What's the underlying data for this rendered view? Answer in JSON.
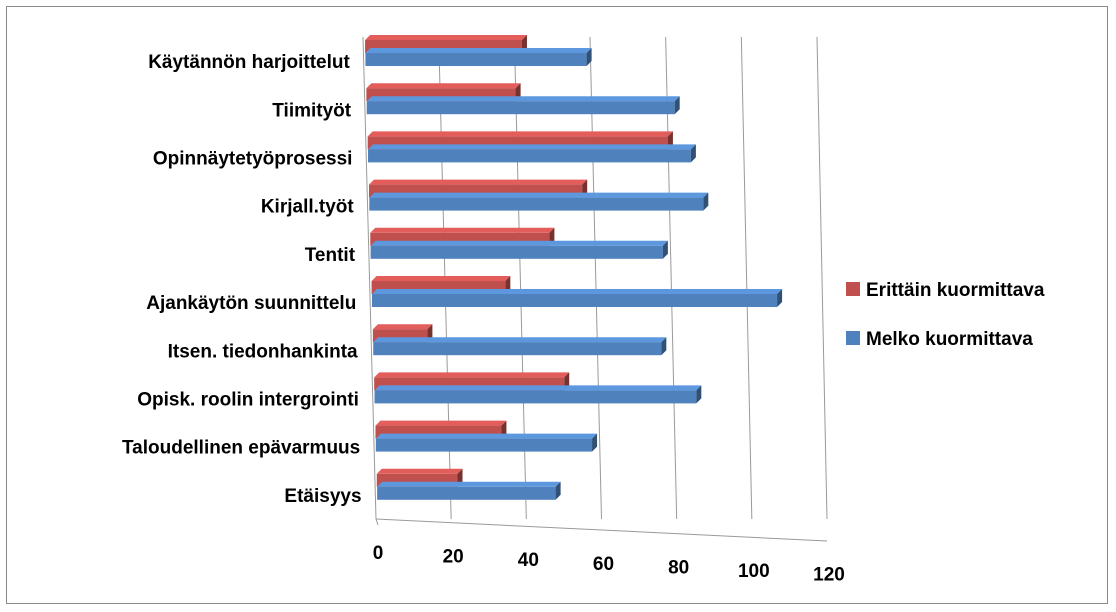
{
  "chart_data": {
    "type": "bar",
    "orientation": "horizontal",
    "style": "3d-clustered",
    "categories": [
      "Käytännön harjoittelut",
      "Tiimityöt",
      "Opinnäytetyöprosessi",
      "Kirjall.työt",
      "Tentit",
      "Ajankäytön suunnittelu",
      "Itsen. tiedonhankinta",
      "Opisk. roolin intergrointi",
      "Taloudellinen  epävarmuus",
      "Etäisyys"
    ],
    "series": [
      {
        "name": "Erittäin kuormittava",
        "color": "#c0504d",
        "values": [
          42,
          40,
          80,
          57,
          48,
          36,
          15,
          51,
          34,
          22
        ]
      },
      {
        "name": "Melko kuormittava",
        "color": "#4f81bd",
        "values": [
          59,
          82,
          86,
          89,
          78,
          108,
          77,
          86,
          58,
          48
        ]
      }
    ],
    "xlim": [
      0,
      120
    ],
    "xticks": [
      0,
      20,
      40,
      60,
      80,
      100,
      120
    ],
    "grid": true,
    "legend_position": "right"
  }
}
